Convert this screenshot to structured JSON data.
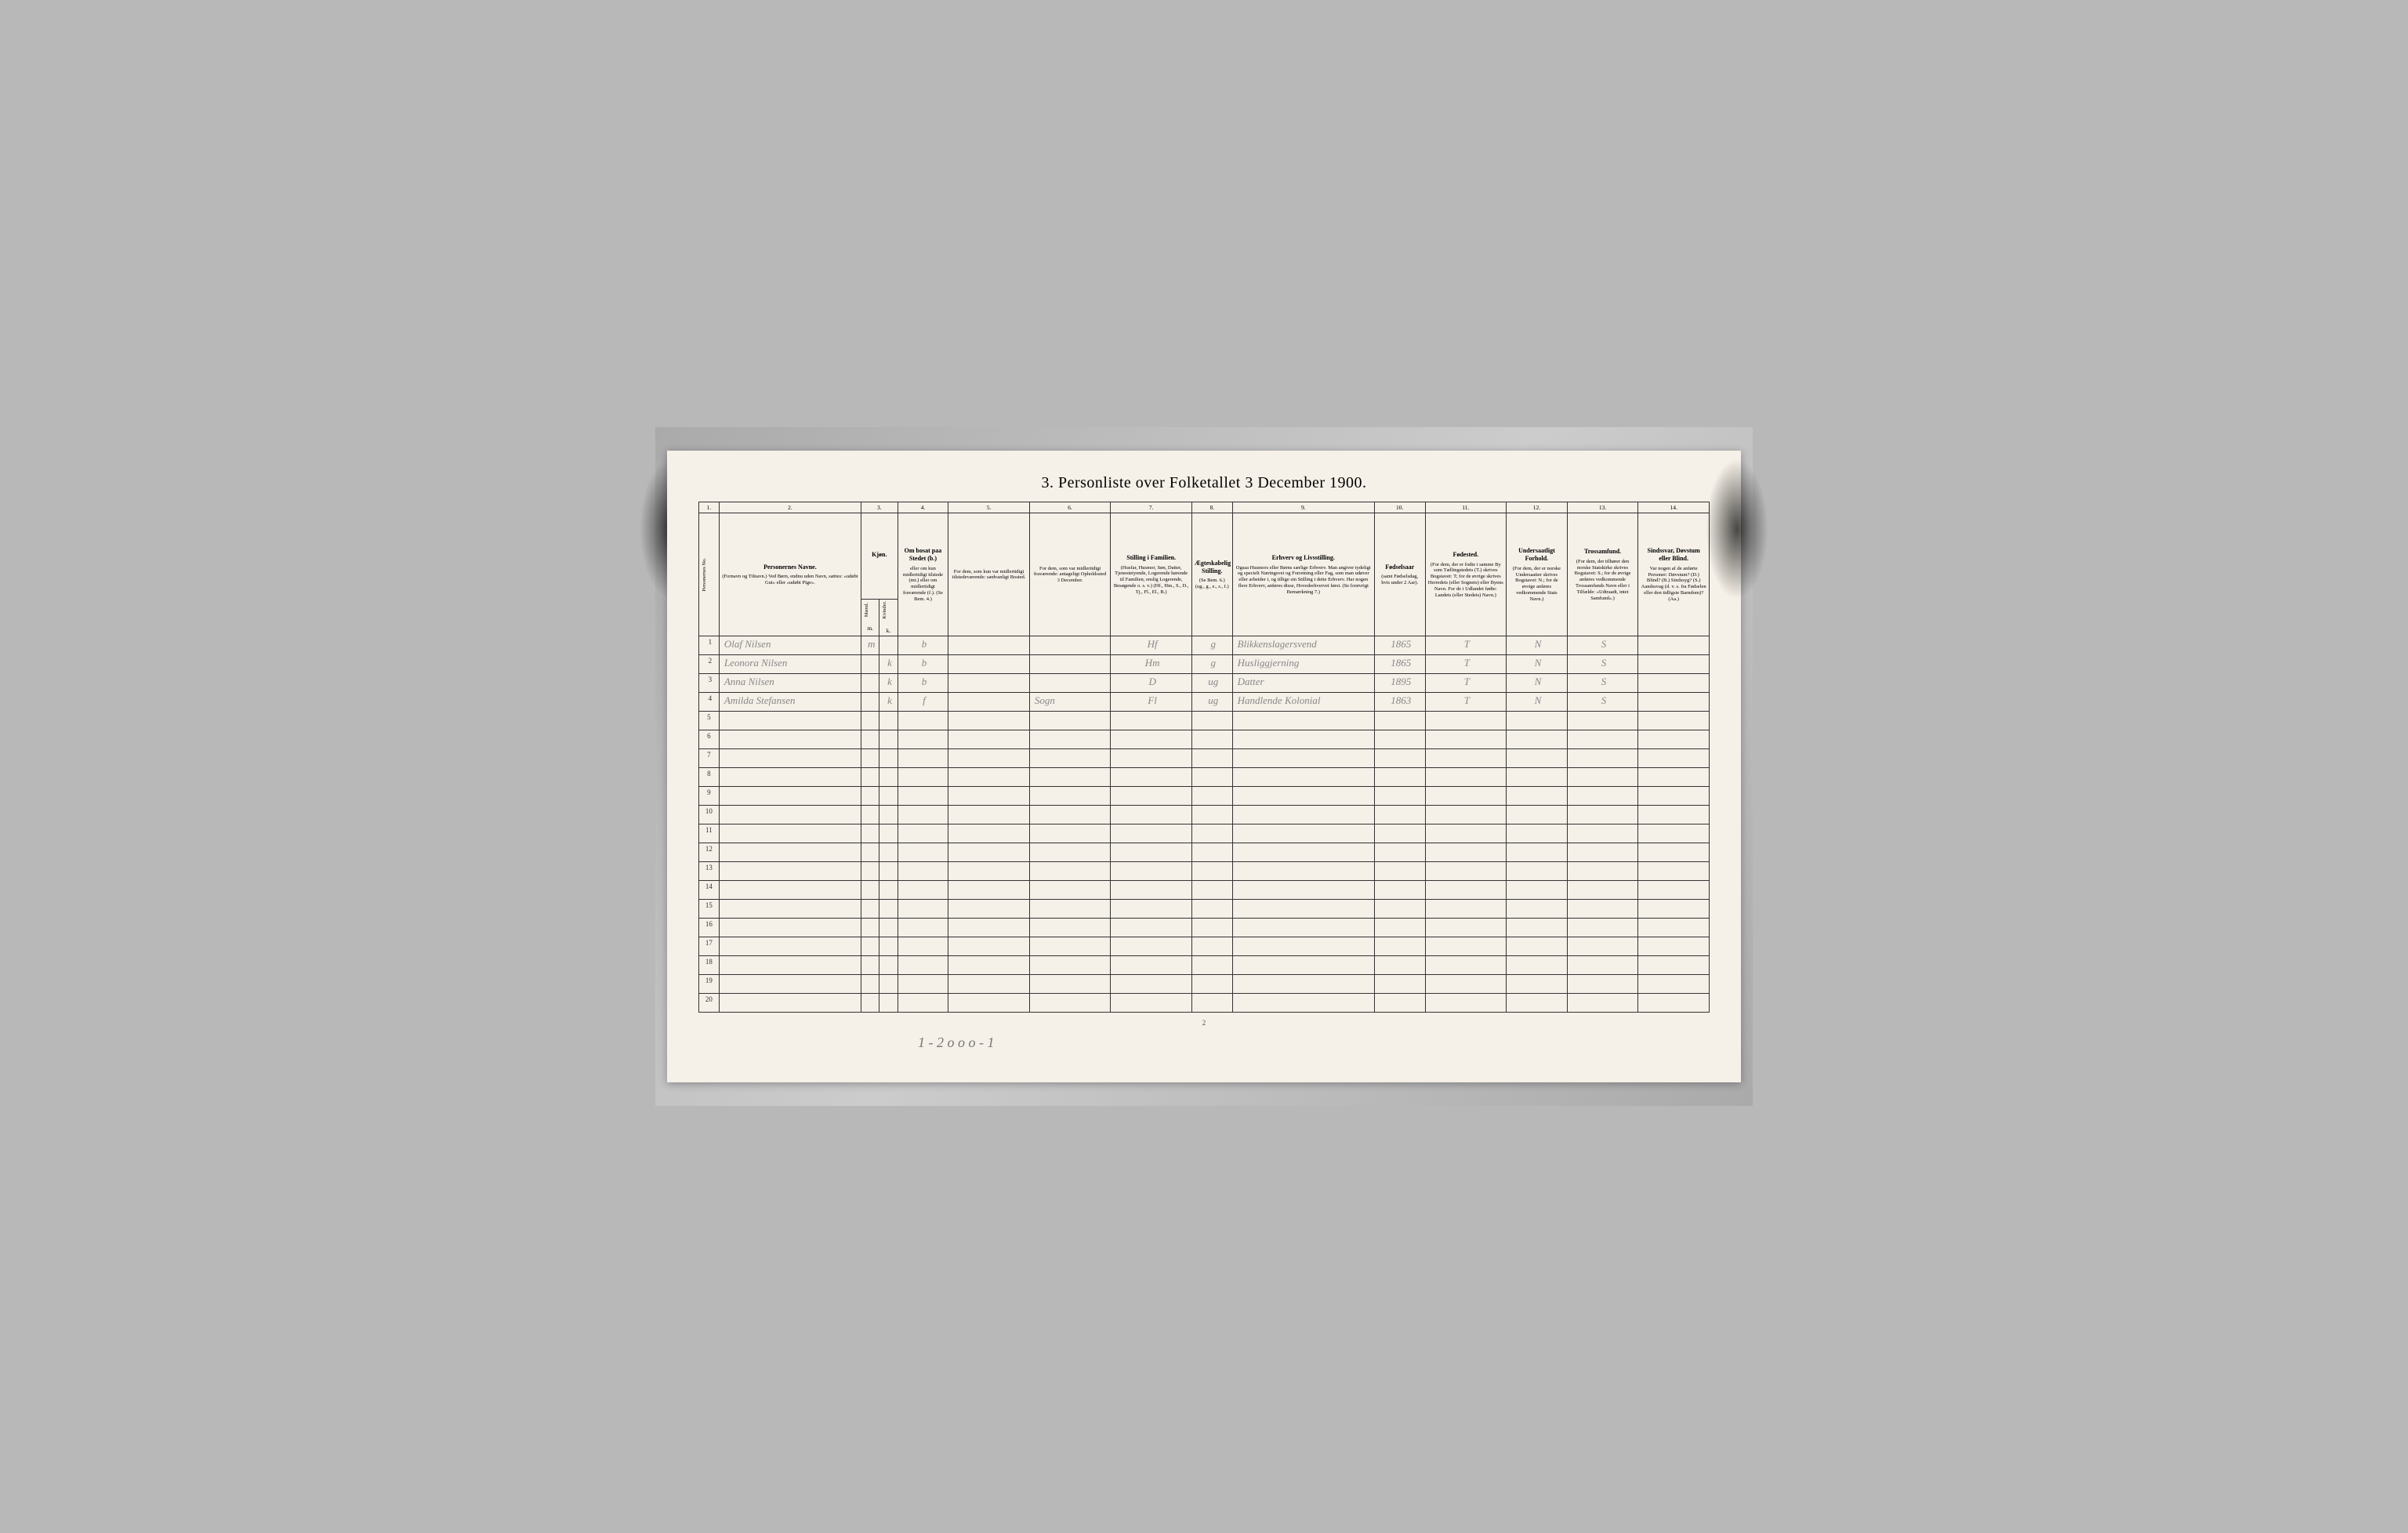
{
  "document": {
    "title": "3. Personliste over Folketallet 3 December 1900.",
    "page_number": "2",
    "footer_annotation": "1 - 2   o o   o - 1"
  },
  "columns": {
    "nums": [
      "1.",
      "2.",
      "3.",
      "4.",
      "5.",
      "6.",
      "7.",
      "8.",
      "9.",
      "10.",
      "11.",
      "12.",
      "13.",
      "14."
    ],
    "headers": [
      {
        "main": "",
        "sub": "Personernes No."
      },
      {
        "main": "Personernes Navne.",
        "sub": "(Fornavn og Tilnavn.) Ved Børn, endnu uden Navn, sættes: «udøbt Gut» eller «udøbt Pige»."
      },
      {
        "main": "Kjøn.",
        "sub": "Mænd."
      },
      {
        "main": "",
        "sub": "Kvinder."
      },
      {
        "main": "Om bosat paa Stedet (b.)",
        "sub": "eller om kun midlertidigt tilstede (mt.) eller om midlertidigt fraværende (f.). (Se Bem. 4.)"
      },
      {
        "main": "",
        "sub": "For dem, som kun var midlertidigt tilstedeværende: sædvanligt Bosted."
      },
      {
        "main": "",
        "sub": "For dem, som var midlertidigt fraværende: antageligt Opholdssted 3 December."
      },
      {
        "main": "Stilling i Familien.",
        "sub": "(Husfar, Husmor, Søn, Datter, Tjenestetyende, Logerende hørende til Familien, enslig Logerende, Besøgende o. s. v.) (Hf., Hm., S., D., Tj., Fl., El., B.)"
      },
      {
        "main": "Ægteskabelig Stilling.",
        "sub": "(Se Bem. 6.) (ug., g., e., s., f.)"
      },
      {
        "main": "Erhverv og Livsstilling.",
        "sub": "Ogsaa Husmors eller Børns særlige Erhverv. Man angiver tydeligt og specielt Næringsvei og Forretning eller Fag, som man udøver eller arbeider i, og tillige sin Stilling i dette Erhverv. Har nogen flere Erhverv, anføres disse, Hovederhvervet først. (Se forøvrigt Bemærkning 7.)"
      },
      {
        "main": "Fødselsaar",
        "sub": "(samt Fødselsdag, hvis under 2 Aar)."
      },
      {
        "main": "Fødested.",
        "sub": "(For dem, der er fodte i samme By som Tællingstedets (T.) skrives Bogstavet: T; for de øvrige skrives Herredets (eller Sognets) eller Byens Navn. For de i Udlandet fødte: Landets (eller Stedets) Navn.)"
      },
      {
        "main": "Undersaatligt Forhold.",
        "sub": "(For dem, der er norske Undersaatter skrives Bogstavet: N.; for de øvrige anføres vedkommende Stats Navn.)"
      },
      {
        "main": "Trossamfund.",
        "sub": "(For dem, der tilhører den norske Statskirke skrives Bogstavet: S.; for de øvrige anføres vedkommende Trossamfunds Navn eller i Tilfælde: «Udtraadt, intet Samfund».)"
      },
      {
        "main": "Sindssvar, Døvstum eller Blind.",
        "sub": "Var nogen af de anførte Personer: Døvstum? (D.) Blind? (B.) Sindssyg? (S.) Aandssvag (d. v. s. fra Fødselen eller den tidligste Barndom)? (Aa.)"
      }
    ],
    "sub_mk": {
      "m": "m.",
      "k": "k."
    }
  },
  "rows": [
    {
      "num": "1",
      "name": "Olaf Nilsen",
      "sex_m": "m",
      "sex_k": "",
      "residence": "b",
      "col5": "",
      "col6": "",
      "position": "Hf",
      "marital": "g",
      "occupation": "Blikkenslagersvend",
      "birth": "1865",
      "birthplace": "T",
      "nationality": "N",
      "religion": "S",
      "col14": ""
    },
    {
      "num": "2",
      "name": "Leonora Nilsen",
      "sex_m": "",
      "sex_k": "k",
      "residence": "b",
      "col5": "",
      "col6": "",
      "position": "Hm",
      "marital": "g",
      "occupation": "Husliggjerning",
      "birth": "1865",
      "birthplace": "T",
      "nationality": "N",
      "religion": "S",
      "col14": ""
    },
    {
      "num": "3",
      "name": "Anna Nilsen",
      "sex_m": "",
      "sex_k": "k",
      "residence": "b",
      "col5": "",
      "col6": "",
      "position": "D",
      "marital": "ug",
      "occupation": "Datter",
      "birth": "1895",
      "birthplace": "T",
      "nationality": "N",
      "religion": "S",
      "col14": ""
    },
    {
      "num": "4",
      "name": "Amilda Stefansen",
      "sex_m": "",
      "sex_k": "k",
      "residence": "f",
      "col5": "",
      "col6": "Sogn",
      "position": "Fl",
      "marital": "ug",
      "occupation": "Handlende Kolonial",
      "birth": "1863",
      "birthplace": "T",
      "nationality": "N",
      "religion": "S",
      "col14": ""
    }
  ],
  "empty_rows": [
    "5",
    "6",
    "7",
    "8",
    "9",
    "10",
    "11",
    "12",
    "13",
    "14",
    "15",
    "16",
    "17",
    "18",
    "19",
    "20"
  ],
  "styling": {
    "background_color": "#f5f0e8",
    "border_color": "#333333",
    "handwriting_color": "#888888",
    "title_fontsize": 20,
    "header_fontsize": 7.5,
    "data_fontsize": 13
  }
}
